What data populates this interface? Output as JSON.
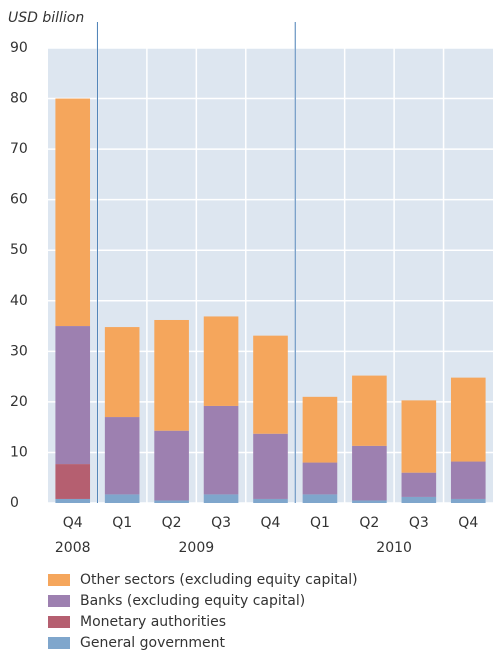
{
  "chart_data": {
    "type": "stacked-bar",
    "y_label": "USD billion",
    "categories": [
      "Q4",
      "Q1",
      "Q2",
      "Q3",
      "Q4",
      "Q1",
      "Q2",
      "Q3",
      "Q4"
    ],
    "groups": [
      {
        "label": "2008",
        "count": 1
      },
      {
        "label": "2009",
        "count": 4
      },
      {
        "label": "2010",
        "count": 4
      }
    ],
    "series": [
      {
        "name": "General government",
        "color": "#7fa6cc",
        "values": [
          0.8,
          1.7,
          0.5,
          1.7,
          0.8,
          1.7,
          0.5,
          1.2,
          0.8
        ]
      },
      {
        "name": "Monetary authorities",
        "color": "#b55f70",
        "values": [
          6.9,
          0,
          0,
          0,
          0,
          0,
          0,
          0,
          0
        ]
      },
      {
        "name": "Banks (excluding equity capital)",
        "color": "#9d80b0",
        "values": [
          27.3,
          15.3,
          13.8,
          17.5,
          12.9,
          6.3,
          10.8,
          4.8,
          7.4
        ]
      },
      {
        "name": "Other sectors (excluding equity capital)",
        "color": "#f5a65c",
        "values": [
          45,
          17.8,
          21.9,
          17.7,
          19.4,
          13,
          13.9,
          14.3,
          16.6
        ]
      }
    ],
    "ylim": [
      0,
      90
    ],
    "yticks": [
      0,
      10,
      20,
      30,
      40,
      50,
      60,
      70,
      80,
      90
    ],
    "grid": true
  }
}
